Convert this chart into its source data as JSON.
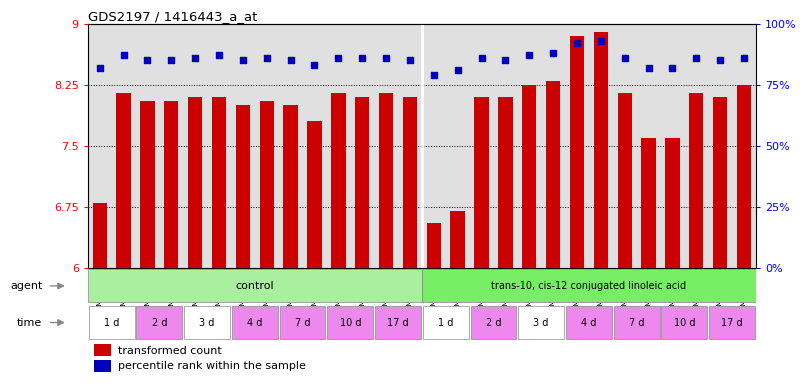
{
  "title": "GDS2197 / 1416443_a_at",
  "samples": [
    "GSM105365",
    "GSM105366",
    "GSM105369",
    "GSM105370",
    "GSM105373",
    "GSM105374",
    "GSM105377",
    "GSM105378",
    "GSM105381",
    "GSM105382",
    "GSM105385",
    "GSM105386",
    "GSM105389",
    "GSM105390",
    "GSM105363",
    "GSM105364",
    "GSM105367",
    "GSM105368",
    "GSM105371",
    "GSM105372",
    "GSM105375",
    "GSM105376",
    "GSM105379",
    "GSM105380",
    "GSM105383",
    "GSM105384",
    "GSM105387",
    "GSM105388"
  ],
  "bar_values": [
    6.8,
    8.15,
    8.05,
    8.05,
    8.1,
    8.1,
    8.0,
    8.05,
    8.0,
    7.8,
    8.15,
    8.1,
    8.15,
    8.1,
    6.55,
    6.7,
    8.1,
    8.1,
    8.25,
    8.3,
    8.85,
    8.9,
    8.15,
    7.6,
    7.6,
    8.15,
    8.1,
    8.25
  ],
  "percentile_values": [
    82,
    87,
    85,
    85,
    86,
    87,
    85,
    86,
    85,
    83,
    86,
    86,
    86,
    85,
    79,
    81,
    86,
    85,
    87,
    88,
    92,
    93,
    86,
    82,
    82,
    86,
    85,
    86
  ],
  "ylim_left": [
    6.0,
    9.0
  ],
  "yticks_left": [
    6.0,
    6.75,
    7.5,
    8.25,
    9.0
  ],
  "ytick_labels_left": [
    "6",
    "6.75",
    "7.5",
    "8.25",
    "9"
  ],
  "ylim_right": [
    0,
    100
  ],
  "yticks_right": [
    0,
    25,
    50,
    75,
    100
  ],
  "ytick_labels_right": [
    "0%",
    "25%",
    "50%",
    "75%",
    "100%"
  ],
  "bar_color": "#cc0000",
  "percentile_color": "#0000bb",
  "bg_color": "#e0e0e0",
  "control_label": "control",
  "treatment_label": "trans-10, cis-12 conjugated linoleic acid",
  "control_color": "#aaeea0",
  "treatment_color": "#77ee66",
  "time_pink_color": "#ee88ee",
  "time_white_color": "#ffffff",
  "time_labels": [
    "1 d",
    "2 d",
    "3 d",
    "4 d",
    "7 d",
    "10 d",
    "17 d",
    "1 d",
    "2 d",
    "3 d",
    "4 d",
    "7 d",
    "10 d",
    "17 d"
  ],
  "time_colors": [
    "#ffffff",
    "#ee88ee",
    "#ffffff",
    "#ee88ee",
    "#ee88ee",
    "#ee88ee",
    "#ee88ee",
    "#ffffff",
    "#ee88ee",
    "#ffffff",
    "#ee88ee",
    "#ee88ee",
    "#ee88ee",
    "#ee88ee"
  ],
  "control_count": 14,
  "treatment_count": 14,
  "bars_per_timegroup": 2,
  "legend_red": "transformed count",
  "legend_blue": "percentile rank within the sample"
}
